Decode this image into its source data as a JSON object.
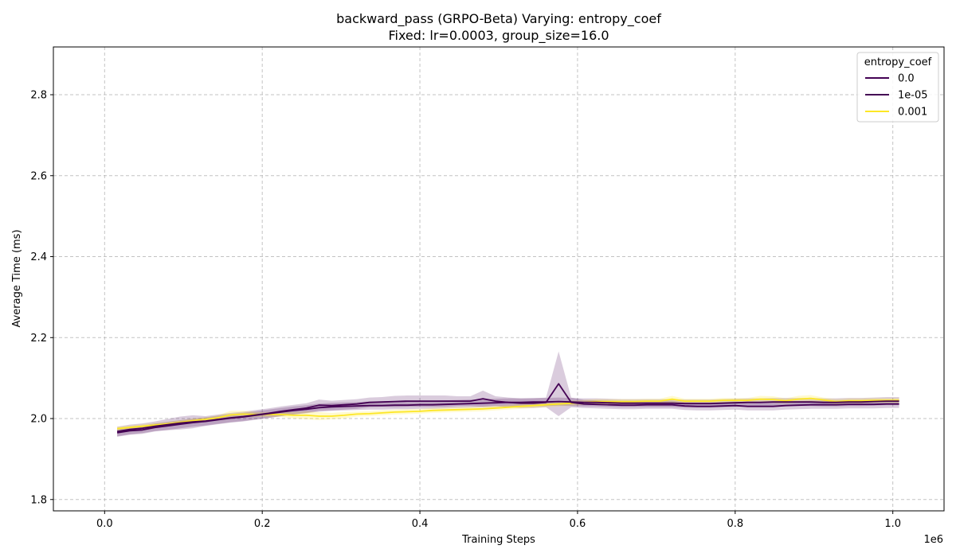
{
  "chart_data": {
    "type": "line",
    "title": "backward_pass (GRPO-Beta) Varying: entropy_coef",
    "subtitle": "Fixed: lr=0.0003, group_size=16.0",
    "xlabel": "Training Steps",
    "ylabel": "Average Time (ms)",
    "x_offset_label": "1e6",
    "xlim": [
      -0.065,
      1.065
    ],
    "ylim": [
      1.772,
      2.918
    ],
    "x_ticks": [
      0.0,
      0.2,
      0.4,
      0.6,
      0.8,
      1.0
    ],
    "x_tick_labels": [
      "0.0",
      "0.2",
      "0.4",
      "0.6",
      "0.8",
      "1.0"
    ],
    "y_ticks": [
      1.8,
      2.0,
      2.2,
      2.4,
      2.6,
      2.8
    ],
    "y_tick_labels": [
      "1.8",
      "2.0",
      "2.2",
      "2.4",
      "2.6",
      "2.8"
    ],
    "grid": true,
    "legend": {
      "title": "entropy_coef",
      "position": "top-right"
    },
    "x": [
      0.016,
      0.032,
      0.048,
      0.064,
      0.08,
      0.096,
      0.112,
      0.128,
      0.144,
      0.16,
      0.176,
      0.192,
      0.208,
      0.224,
      0.24,
      0.256,
      0.272,
      0.288,
      0.304,
      0.32,
      0.336,
      0.352,
      0.368,
      0.384,
      0.4,
      0.416,
      0.432,
      0.448,
      0.464,
      0.48,
      0.496,
      0.512,
      0.528,
      0.544,
      0.56,
      0.576,
      0.592,
      0.608,
      0.624,
      0.64,
      0.656,
      0.672,
      0.688,
      0.704,
      0.72,
      0.736,
      0.752,
      0.768,
      0.784,
      0.8,
      0.816,
      0.832,
      0.848,
      0.864,
      0.88,
      0.896,
      0.912,
      0.928,
      0.944,
      0.96,
      0.976,
      0.992,
      1.008
    ],
    "series": [
      {
        "name": "0.0",
        "color": "#440154",
        "values": [
          1.965,
          1.97,
          1.972,
          1.978,
          1.982,
          1.986,
          1.99,
          1.993,
          1.997,
          2.001,
          2.004,
          2.008,
          2.012,
          2.016,
          2.02,
          2.023,
          2.027,
          2.029,
          2.03,
          2.031,
          2.032,
          2.032,
          2.033,
          2.033,
          2.034,
          2.034,
          2.035,
          2.036,
          2.037,
          2.038,
          2.039,
          2.04,
          2.04,
          2.041,
          2.041,
          2.042,
          2.041,
          2.04,
          2.04,
          2.039,
          2.038,
          2.038,
          2.038,
          2.038,
          2.038,
          2.037,
          2.037,
          2.037,
          2.038,
          2.039,
          2.04,
          2.04,
          2.041,
          2.041,
          2.041,
          2.041,
          2.04,
          2.04,
          2.041,
          2.041,
          2.042,
          2.043,
          2.043
        ],
        "band": [
          0.01,
          0.01,
          0.01,
          0.01,
          0.01,
          0.01,
          0.01,
          0.01,
          0.01,
          0.01,
          0.01,
          0.01,
          0.01,
          0.01,
          0.01,
          0.01,
          0.01,
          0.01,
          0.01,
          0.01,
          0.01,
          0.01,
          0.01,
          0.01,
          0.01,
          0.01,
          0.01,
          0.01,
          0.01,
          0.01,
          0.01,
          0.01,
          0.01,
          0.01,
          0.01,
          0.01,
          0.01,
          0.01,
          0.01,
          0.01,
          0.01,
          0.01,
          0.01,
          0.01,
          0.01,
          0.01,
          0.01,
          0.01,
          0.01,
          0.01,
          0.01,
          0.01,
          0.01,
          0.01,
          0.01,
          0.01,
          0.01,
          0.01,
          0.01,
          0.01,
          0.01,
          0.01,
          0.01
        ]
      },
      {
        "name": "1e-05",
        "color": "#440154",
        "values": [
          1.968,
          1.973,
          1.976,
          1.981,
          1.985,
          1.989,
          1.992,
          1.994,
          1.998,
          2.002,
          2.005,
          2.009,
          2.013,
          2.018,
          2.022,
          2.026,
          2.033,
          2.032,
          2.034,
          2.036,
          2.04,
          2.041,
          2.042,
          2.043,
          2.043,
          2.043,
          2.043,
          2.043,
          2.043,
          2.049,
          2.043,
          2.04,
          2.038,
          2.038,
          2.04,
          2.086,
          2.04,
          2.036,
          2.035,
          2.034,
          2.033,
          2.033,
          2.034,
          2.034,
          2.034,
          2.031,
          2.03,
          2.03,
          2.031,
          2.032,
          2.03,
          2.03,
          2.03,
          2.032,
          2.033,
          2.034,
          2.034,
          2.034,
          2.035,
          2.035,
          2.035,
          2.036,
          2.036
        ],
        "band": [
          0.012,
          0.012,
          0.012,
          0.012,
          0.014,
          0.016,
          0.016,
          0.012,
          0.012,
          0.012,
          0.012,
          0.012,
          0.012,
          0.012,
          0.012,
          0.012,
          0.014,
          0.012,
          0.012,
          0.012,
          0.012,
          0.012,
          0.014,
          0.014,
          0.014,
          0.014,
          0.014,
          0.012,
          0.012,
          0.02,
          0.012,
          0.012,
          0.012,
          0.012,
          0.012,
          0.08,
          0.012,
          0.01,
          0.01,
          0.01,
          0.01,
          0.01,
          0.01,
          0.01,
          0.01,
          0.01,
          0.01,
          0.01,
          0.01,
          0.01,
          0.01,
          0.01,
          0.01,
          0.01,
          0.01,
          0.01,
          0.01,
          0.01,
          0.01,
          0.01,
          0.01,
          0.01,
          0.01
        ]
      },
      {
        "name": "0.001",
        "color": "#fde725",
        "values": [
          1.975,
          1.978,
          1.981,
          1.984,
          1.987,
          1.991,
          1.995,
          1.998,
          2.002,
          2.009,
          2.011,
          2.01,
          2.01,
          2.01,
          2.008,
          2.008,
          2.006,
          2.006,
          2.008,
          2.011,
          2.012,
          2.014,
          2.016,
          2.017,
          2.018,
          2.02,
          2.021,
          2.022,
          2.023,
          2.024,
          2.026,
          2.028,
          2.03,
          2.032,
          2.034,
          2.036,
          2.038,
          2.04,
          2.042,
          2.042,
          2.042,
          2.042,
          2.043,
          2.043,
          2.048,
          2.043,
          2.043,
          2.043,
          2.045,
          2.045,
          2.045,
          2.048,
          2.047,
          2.044,
          2.048,
          2.05,
          2.046,
          2.042,
          2.044,
          2.044,
          2.045,
          2.045,
          2.045
        ],
        "band": [
          0.005,
          0.005,
          0.005,
          0.005,
          0.005,
          0.005,
          0.005,
          0.005,
          0.006,
          0.01,
          0.008,
          0.006,
          0.006,
          0.006,
          0.008,
          0.01,
          0.01,
          0.008,
          0.008,
          0.006,
          0.006,
          0.006,
          0.006,
          0.006,
          0.006,
          0.006,
          0.006,
          0.006,
          0.006,
          0.006,
          0.006,
          0.006,
          0.006,
          0.006,
          0.006,
          0.006,
          0.006,
          0.006,
          0.006,
          0.006,
          0.006,
          0.006,
          0.006,
          0.006,
          0.008,
          0.006,
          0.006,
          0.006,
          0.006,
          0.006,
          0.006,
          0.008,
          0.008,
          0.006,
          0.008,
          0.008,
          0.006,
          0.006,
          0.006,
          0.006,
          0.006,
          0.006,
          0.006
        ]
      }
    ]
  }
}
